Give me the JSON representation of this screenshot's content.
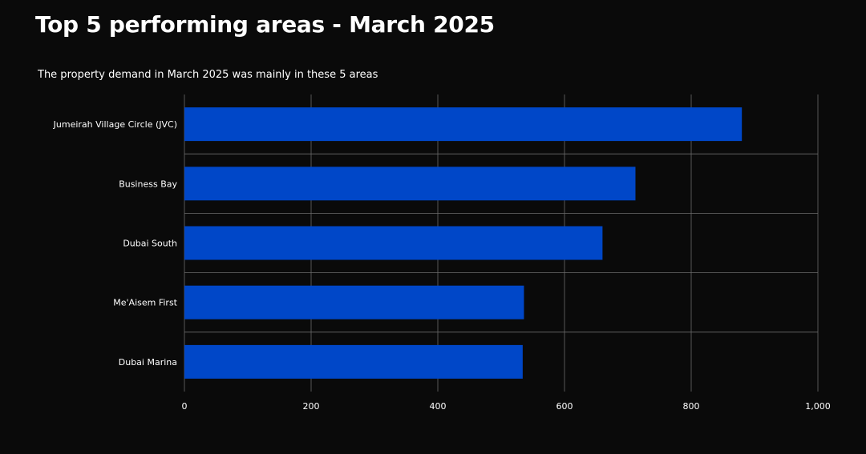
{
  "header": {
    "title": "Top 5 performing areas - March 2025",
    "subtitle": "The property demand in March 2025 was mainly in these 5 areas"
  },
  "colors": {
    "background": "#0a0a0a",
    "bar": "#0047c8",
    "grid": "#6a6a6a",
    "text": "#ffffff"
  },
  "chart_data": {
    "type": "bar",
    "orientation": "horizontal",
    "categories": [
      "Jumeirah Village Circle (JVC)",
      "Business Bay",
      "Dubai South",
      "Me'Aisem First",
      "Dubai Marina"
    ],
    "values": [
      880,
      712,
      660,
      536,
      534
    ],
    "title": "Top 5 performing areas - March 2025",
    "subtitle": "The property demand in March 2025 was mainly in these 5 areas",
    "xlabel": "",
    "ylabel": "",
    "xlim": [
      0,
      1000
    ],
    "xticks": [
      0,
      200,
      400,
      600,
      800,
      1000
    ],
    "xtick_labels": [
      "0",
      "200",
      "400",
      "600",
      "800",
      "1,000"
    ],
    "grid": true,
    "legend": "none"
  }
}
